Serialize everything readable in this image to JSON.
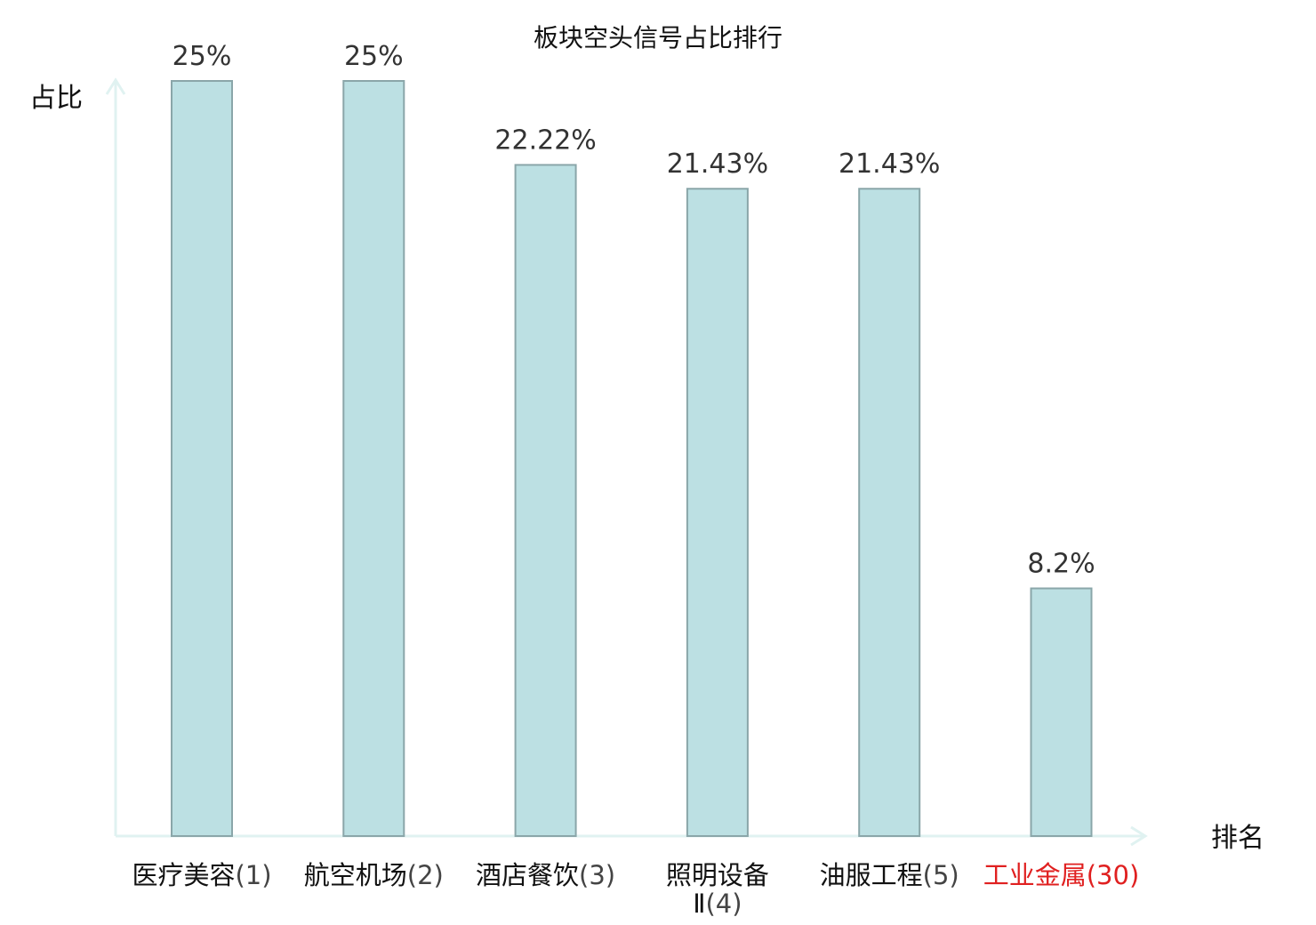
{
  "chart_data": {
    "type": "bar",
    "title": "板块空头信号占比排行",
    "ylabel": "占比",
    "xlabel": "排名",
    "ylim": [
      0,
      25
    ],
    "grid": false,
    "legend": "none",
    "categories": [
      {
        "name": [
          "医疗美容"
        ],
        "rank": "(1)",
        "highlight": false
      },
      {
        "name": [
          "航空机场"
        ],
        "rank": "(2)",
        "highlight": false
      },
      {
        "name": [
          "酒店餐饮"
        ],
        "rank": "(3)",
        "highlight": false
      },
      {
        "name": [
          "照明设备",
          "Ⅱ"
        ],
        "rank": "(4)",
        "highlight": false
      },
      {
        "name": [
          "油服工程"
        ],
        "rank": "(5)",
        "highlight": false
      },
      {
        "name": [
          "工业金属"
        ],
        "rank": "(30)",
        "highlight": true
      }
    ],
    "values": [
      25,
      25,
      22.22,
      21.43,
      21.43,
      8.2
    ],
    "value_labels": [
      "25%",
      "25%",
      "22.22%",
      "21.43%",
      "21.43%",
      "8.2%"
    ],
    "colors": {
      "bar_fill": "#bce0e3",
      "bar_stroke": "#8aa6a9",
      "axis": "#e0f2f1",
      "highlight": "#e02020"
    }
  }
}
